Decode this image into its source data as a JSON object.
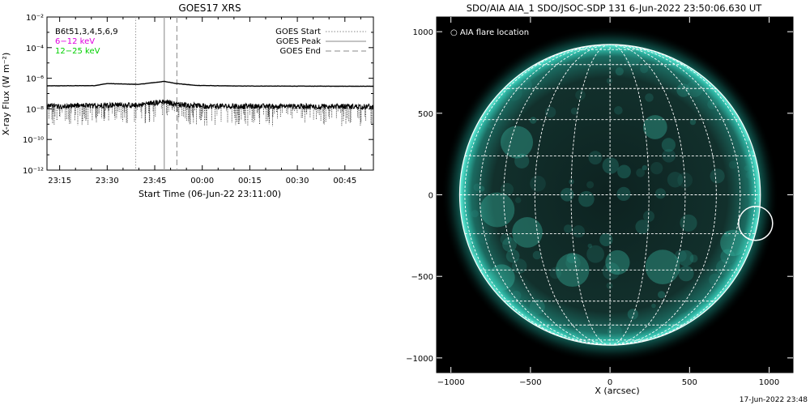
{
  "chart_data": [
    {
      "type": "line",
      "title": "GOES17 XRS",
      "xlabel": "Start Time (06-Jun-22 23:11:00)",
      "ylabel": "X-ray Flux (W m⁻²)",
      "yscale": "log",
      "ylim": [
        1e-12,
        0.01
      ],
      "y_ticks": [
        "10⁻²",
        "10⁻⁴",
        "10⁻⁶",
        "10⁻⁸",
        "10⁻¹⁰",
        "10⁻¹²"
      ],
      "x_range_minutes": [
        0,
        103
      ],
      "x_ticks": [
        {
          "label": "23:15",
          "t": 4
        },
        {
          "label": "23:30",
          "t": 19
        },
        {
          "label": "23:45",
          "t": 34
        },
        {
          "label": "00:00",
          "t": 49
        },
        {
          "label": "00:15",
          "t": 64
        },
        {
          "label": "00:30",
          "t": 79
        },
        {
          "label": "00:45",
          "t": 94
        }
      ],
      "left_legend": {
        "text": "B6t51,3,4,5,6,9",
        "items": [
          {
            "label": "6−12 keV",
            "color": "#e000e0"
          },
          {
            "label": "12−25 keV",
            "color": "#00d000"
          }
        ]
      },
      "event_legend": [
        {
          "label": "GOES Start",
          "style": "dotted"
        },
        {
          "label": "GOES Peak",
          "style": "solid"
        },
        {
          "label": "GOES End",
          "style": "dashed"
        }
      ],
      "event_lines": {
        "start": 28,
        "peak": 37,
        "end": 41
      },
      "series": [
        {
          "name": "6−12 keV",
          "points": [
            [
              0,
              3.2e-07
            ],
            [
              15,
              3.3e-07
            ],
            [
              19,
              4.5e-07
            ],
            [
              24,
              4.2e-07
            ],
            [
              29,
              4e-07
            ],
            [
              33,
              5e-07
            ],
            [
              37,
              6.2e-07
            ],
            [
              41,
              4.5e-07
            ],
            [
              47,
              3.4e-07
            ],
            [
              60,
              3.1e-07
            ],
            [
              103,
              3e-07
            ]
          ]
        },
        {
          "name": "12−25 keV",
          "points": [
            [
              0,
              1.5e-08
            ],
            [
              15,
              1.6e-08
            ],
            [
              22,
              1.9e-08
            ],
            [
              28,
              1.7e-08
            ],
            [
              33,
              2.4e-08
            ],
            [
              37,
              2.9e-08
            ],
            [
              41,
              2e-08
            ],
            [
              50,
              1.5e-08
            ],
            [
              103,
              1.4e-08
            ]
          ]
        }
      ],
      "legend_position": "top-right"
    },
    {
      "type": "scatter",
      "title": "SDO/AIA AIA_1 SDO/JSOC-SDP 131  6-Jun-2022 23:50:06.630 UT",
      "xlabel": "X (arcsec)",
      "ylabel": "",
      "xlim": [
        -1090,
        1150
      ],
      "ylim": [
        -1090,
        1090
      ],
      "x_ticks": [
        -1000,
        -500,
        0,
        500,
        1000
      ],
      "y_ticks": [
        1000,
        500,
        0,
        -500,
        -1000
      ],
      "solar_radius_arcsec": 945,
      "legend": "○ AIA flare location",
      "flare_location": [
        915,
        -175
      ],
      "footer": "17-Jun-2022 23:48"
    }
  ]
}
